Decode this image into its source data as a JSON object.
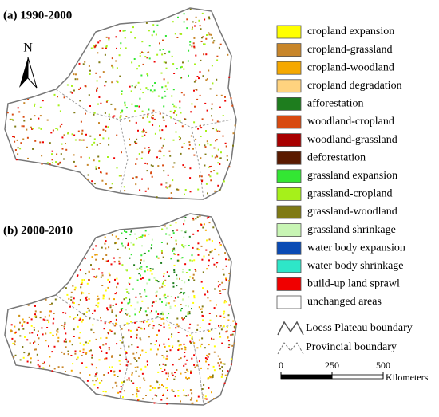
{
  "panels": [
    {
      "title": "(a) 1990-2000"
    },
    {
      "title": "(b) 2000-2010"
    }
  ],
  "north_label": "N",
  "legend": [
    {
      "label": "cropland expansion",
      "color": "#ffff00"
    },
    {
      "label": "cropland-grassland",
      "color": "#c8862a"
    },
    {
      "label": "cropland-woodland",
      "color": "#f5a800"
    },
    {
      "label": "cropland degradation",
      "color": "#ffd37f"
    },
    {
      "label": "afforestation",
      "color": "#1e7d1e"
    },
    {
      "label": "woodland-cropland",
      "color": "#d84a10"
    },
    {
      "label": "woodland-grassland",
      "color": "#a80000"
    },
    {
      "label": "deforestation",
      "color": "#5a1a00"
    },
    {
      "label": "grassland expansion",
      "color": "#33e633"
    },
    {
      "label": "grassland-cropland",
      "color": "#a6f01a"
    },
    {
      "label": "grassland-woodland",
      "color": "#7f7a14"
    },
    {
      "label": "grassland shrinkage",
      "color": "#c8f5b4"
    },
    {
      "label": "water body expansion",
      "color": "#0a4bb4"
    },
    {
      "label": "water body shrinkage",
      "color": "#2ee6c8"
    },
    {
      "label": "build-up land sprawl",
      "color": "#f00000"
    },
    {
      "label": "unchanged areas",
      "color": "#ffffff"
    }
  ],
  "boundaries": [
    {
      "label": "Loess Plateau boundary"
    },
    {
      "label": "Provincial boundary"
    }
  ],
  "scale": {
    "ticks": [
      0,
      250,
      500
    ],
    "unit": "Kilometers"
  }
}
